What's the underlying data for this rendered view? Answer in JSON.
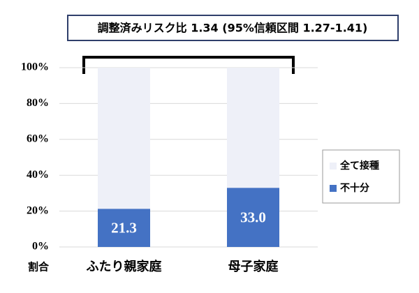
{
  "chart_data": {
    "type": "stacked_bar",
    "annotation": "調整済みリスク比 1.34 (95%信頼区間 1.27-1.41)",
    "y_label": "割合",
    "categories": [
      "ふたり親家庭",
      "母子家庭"
    ],
    "series": [
      {
        "name": "不十分",
        "color": "#4472c4",
        "values": [
          21.3,
          33.0
        ],
        "value_labels": [
          "21.3",
          "33.0"
        ]
      },
      {
        "name": "全て接種",
        "color": "#eef0f8",
        "values": [
          78.7,
          67.0
        ]
      }
    ],
    "ylim": [
      0,
      100
    ],
    "yticks": [
      {
        "value": 0,
        "label": "0%"
      },
      {
        "value": 20,
        "label": "20%"
      },
      {
        "value": 40,
        "label": "40%"
      },
      {
        "value": 60,
        "label": "60%"
      },
      {
        "value": 80,
        "label": "80%"
      },
      {
        "value": 100,
        "label": "100%"
      }
    ],
    "grid": true,
    "legend": "right"
  }
}
